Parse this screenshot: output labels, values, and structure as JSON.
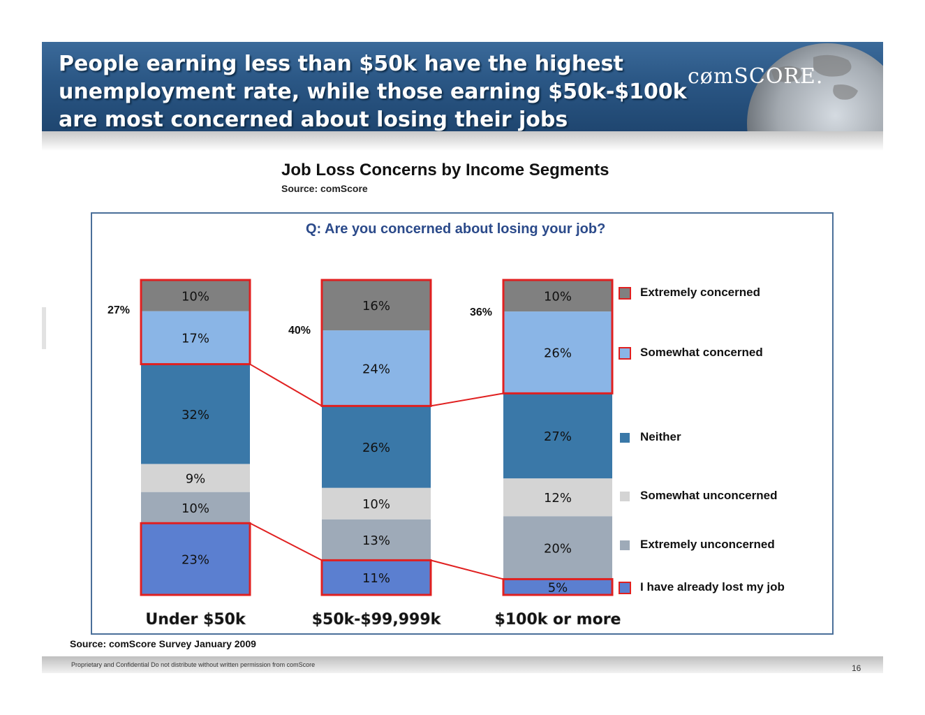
{
  "slide": {
    "title": "People earning less than $50k have the highest unemployment rate, while those earning $50k-$100k are most concerned about losing their jobs",
    "logo_text": "cømSCORE.",
    "footer_source": "Source: comScore Survey January 2009",
    "footer_confidential": "Proprietary and Confidential Do not distribute without written permission from comScore",
    "page_number": "16"
  },
  "chart_data": {
    "type": "bar",
    "stacked": true,
    "title": "Job Loss Concerns by Income Segments",
    "subtitle": "Source: comScore",
    "question": "Q: Are you concerned about losing your job?",
    "categories": [
      "Under $50k",
      "$50k-$99,999k",
      "$100k or more"
    ],
    "series": [
      {
        "name": "I have already lost my job",
        "values": [
          23,
          11,
          5
        ],
        "color": "#5b7fd0"
      },
      {
        "name": "Extremely unconcerned",
        "values": [
          10,
          13,
          20
        ],
        "color": "#9eaab8"
      },
      {
        "name": "Somewhat unconcerned",
        "values": [
          9,
          10,
          12
        ],
        "color": "#d4d4d4"
      },
      {
        "name": "Neither",
        "values": [
          32,
          26,
          27
        ],
        "color": "#3a78a8"
      },
      {
        "name": "Somewhat concerned",
        "values": [
          17,
          24,
          26
        ],
        "color": "#8ab5e6"
      },
      {
        "name": "Extremely concerned",
        "values": [
          10,
          16,
          10
        ],
        "color": "#808080"
      }
    ],
    "value_labels": [
      [
        "23%",
        "10%",
        "9%",
        "32%",
        "17%",
        "10%"
      ],
      [
        "11%",
        "13%",
        "10%",
        "26%",
        "24%",
        "16%"
      ],
      [
        "5%",
        "20%",
        "12%",
        "27%",
        "26%",
        "10%"
      ]
    ],
    "concerned_totals": [
      "27%",
      "40%",
      "36%"
    ],
    "highlight_color": "#e02020",
    "legend_order": [
      "Extremely concerned",
      "Somewhat concerned",
      "Neither",
      "Somewhat unconcerned",
      "Extremely unconcerned",
      "I have already lost my job"
    ],
    "legend_placement": "right"
  }
}
